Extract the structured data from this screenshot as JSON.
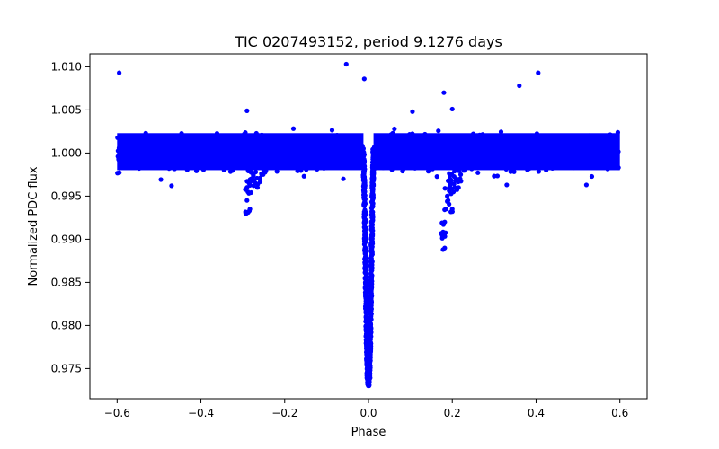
{
  "chart_data": {
    "type": "scatter",
    "title": "TIC 0207493152, period 9.1276 days",
    "xlabel": "Phase",
    "ylabel": "Normalized PDC flux",
    "xlim": [
      -0.665,
      0.665
    ],
    "ylim": [
      0.9715,
      1.0115
    ],
    "xticks": [
      -0.6,
      -0.4,
      -0.2,
      0.0,
      0.2,
      0.4,
      0.6
    ],
    "xtick_labels": [
      "−0.6",
      "−0.4",
      "−0.2",
      "0.0",
      "0.2",
      "0.4",
      "0.6"
    ],
    "yticks": [
      0.975,
      0.98,
      0.985,
      0.99,
      0.995,
      1.0,
      1.005,
      1.01
    ],
    "ytick_labels": [
      "0.975",
      "0.980",
      "0.985",
      "0.990",
      "0.995",
      "1.000",
      "1.005",
      "1.010"
    ],
    "grid": false,
    "marker_color": "#0000ff",
    "series": [
      {
        "name": "baseline",
        "description": "dense out-of-eclipse band",
        "x_range": [
          -0.6,
          0.6
        ],
        "y_center": 1.0,
        "y_spread": [
          0.9972,
          1.0036
        ]
      },
      {
        "name": "primary-eclipse",
        "description": "deep narrow dip at phase 0",
        "x_range": [
          -0.012,
          0.012
        ],
        "y_min": 0.9735,
        "points": [
          {
            "x": -0.012,
            "y": 1.0
          },
          {
            "x": -0.01,
            "y": 0.996
          },
          {
            "x": -0.008,
            "y": 0.99
          },
          {
            "x": -0.006,
            "y": 0.984
          },
          {
            "x": -0.004,
            "y": 0.978
          },
          {
            "x": -0.002,
            "y": 0.9745
          },
          {
            "x": 0.0,
            "y": 0.9735
          },
          {
            "x": 0.002,
            "y": 0.9745
          },
          {
            "x": 0.004,
            "y": 0.978
          },
          {
            "x": 0.006,
            "y": 0.984
          },
          {
            "x": 0.008,
            "y": 0.99
          },
          {
            "x": 0.01,
            "y": 0.996
          },
          {
            "x": 0.012,
            "y": 1.0
          }
        ]
      },
      {
        "name": "feature-near-minus-0.28",
        "points": [
          {
            "x": -0.293,
            "y": 0.993
          },
          {
            "x": -0.29,
            "y": 0.9945
          },
          {
            "x": -0.288,
            "y": 0.9955
          },
          {
            "x": -0.285,
            "y": 0.9965
          },
          {
            "x": -0.283,
            "y": 0.9935
          },
          {
            "x": -0.28,
            "y": 0.997
          },
          {
            "x": -0.275,
            "y": 0.9975
          },
          {
            "x": -0.27,
            "y": 0.9965
          },
          {
            "x": -0.265,
            "y": 0.996
          },
          {
            "x": -0.26,
            "y": 0.997
          },
          {
            "x": -0.255,
            "y": 0.9975
          },
          {
            "x": -0.25,
            "y": 0.998
          }
        ]
      },
      {
        "name": "feature-near-0.18",
        "points": [
          {
            "x": 0.178,
            "y": 0.9888
          },
          {
            "x": 0.18,
            "y": 0.9905
          },
          {
            "x": 0.182,
            "y": 0.992
          },
          {
            "x": 0.185,
            "y": 0.9935
          },
          {
            "x": 0.188,
            "y": 0.995
          },
          {
            "x": 0.19,
            "y": 0.9945
          },
          {
            "x": 0.193,
            "y": 0.996
          },
          {
            "x": 0.196,
            "y": 0.9965
          },
          {
            "x": 0.2,
            "y": 0.9935
          },
          {
            "x": 0.203,
            "y": 0.9955
          },
          {
            "x": 0.206,
            "y": 0.996
          },
          {
            "x": 0.21,
            "y": 0.997
          },
          {
            "x": 0.215,
            "y": 0.996
          },
          {
            "x": 0.22,
            "y": 0.9975
          },
          {
            "x": 0.23,
            "y": 0.998
          }
        ]
      },
      {
        "name": "outliers",
        "points": [
          {
            "x": -0.595,
            "y": 1.0093
          },
          {
            "x": -0.053,
            "y": 1.0103
          },
          {
            "x": -0.01,
            "y": 1.0086
          },
          {
            "x": 0.18,
            "y": 1.007
          },
          {
            "x": 0.36,
            "y": 1.0078
          },
          {
            "x": 0.405,
            "y": 1.0093
          },
          {
            "x": -0.29,
            "y": 1.0049
          },
          {
            "x": 0.2,
            "y": 1.0051
          },
          {
            "x": 0.105,
            "y": 1.0048
          },
          {
            "x": -0.47,
            "y": 0.9962
          },
          {
            "x": -0.06,
            "y": 0.997
          },
          {
            "x": 0.33,
            "y": 0.9963
          },
          {
            "x": 0.52,
            "y": 0.9963
          }
        ]
      }
    ]
  }
}
